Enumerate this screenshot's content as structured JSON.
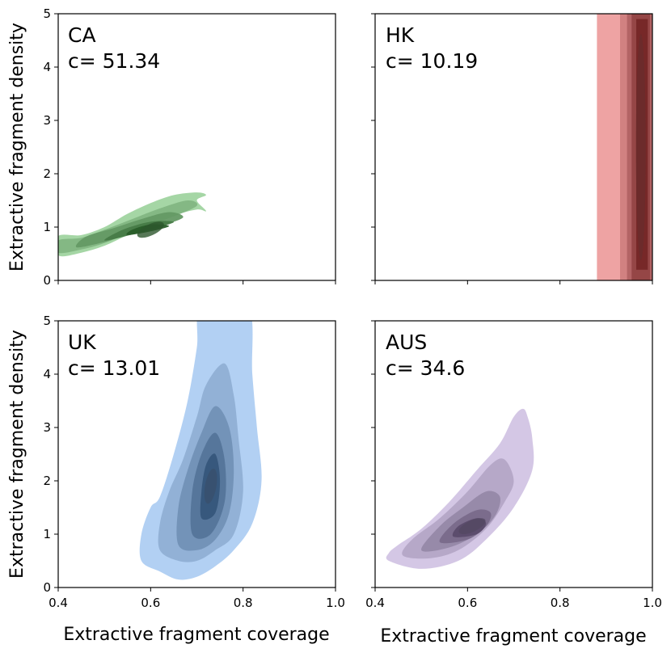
{
  "chart_data": {
    "type": "kde-contour-grid",
    "xlabel": "Extractive fragment coverage",
    "ylabel": "Extractive fragment density",
    "xlim": [
      0.4,
      1.0
    ],
    "ylim": [
      0,
      5
    ],
    "x_ticks": [
      "0.4",
      "0.6",
      "0.8",
      "1.0"
    ],
    "y_ticks": [
      "0",
      "1",
      "2",
      "3",
      "4",
      "5"
    ],
    "grid": false,
    "panels": [
      {
        "name": "CA",
        "c_label": "c= 51.34",
        "color": "#2ca02c",
        "peak": {
          "x": 0.6,
          "y": 0.95
        },
        "levels": [
          [
            [
              0.4,
              0.47
            ],
            [
              0.45,
              0.52
            ],
            [
              0.5,
              0.65
            ],
            [
              0.55,
              0.85
            ],
            [
              0.6,
              1.05
            ],
            [
              0.65,
              1.22
            ],
            [
              0.7,
              1.33
            ],
            [
              0.72,
              1.3
            ],
            [
              0.7,
              1.5
            ],
            [
              0.72,
              1.6
            ],
            [
              0.7,
              1.65
            ],
            [
              0.65,
              1.6
            ],
            [
              0.6,
              1.45
            ],
            [
              0.55,
              1.25
            ],
            [
              0.5,
              1.0
            ],
            [
              0.45,
              0.85
            ],
            [
              0.4,
              0.83
            ]
          ],
          [
            [
              0.4,
              0.52
            ],
            [
              0.45,
              0.58
            ],
            [
              0.5,
              0.7
            ],
            [
              0.55,
              0.88
            ],
            [
              0.6,
              1.05
            ],
            [
              0.65,
              1.2
            ],
            [
              0.7,
              1.4
            ],
            [
              0.68,
              1.5
            ],
            [
              0.62,
              1.35
            ],
            [
              0.56,
              1.15
            ],
            [
              0.5,
              0.95
            ],
            [
              0.45,
              0.8
            ],
            [
              0.4,
              0.75
            ]
          ],
          [
            [
              0.44,
              0.62
            ],
            [
              0.5,
              0.72
            ],
            [
              0.56,
              0.88
            ],
            [
              0.62,
              1.02
            ],
            [
              0.67,
              1.18
            ],
            [
              0.64,
              1.28
            ],
            [
              0.58,
              1.15
            ],
            [
              0.52,
              0.98
            ],
            [
              0.46,
              0.82
            ]
          ],
          [
            [
              0.5,
              0.75
            ],
            [
              0.56,
              0.86
            ],
            [
              0.62,
              1.0
            ],
            [
              0.65,
              1.1
            ],
            [
              0.6,
              1.1
            ],
            [
              0.54,
              0.95
            ]
          ],
          [
            [
              0.55,
              0.85
            ],
            [
              0.6,
              0.92
            ],
            [
              0.64,
              1.02
            ],
            [
              0.6,
              1.05
            ],
            [
              0.56,
              0.95
            ]
          ]
        ]
      },
      {
        "name": "HK",
        "c_label": "c= 10.19",
        "color": "#d62728",
        "peak": {
          "x": 0.975,
          "y": 2.5
        },
        "levels": [
          [
            [
              0.88,
              -0.3
            ],
            [
              1.02,
              -0.3
            ],
            [
              1.02,
              5.3
            ],
            [
              0.88,
              5.3
            ]
          ],
          [
            [
              0.93,
              -0.3
            ],
            [
              1.02,
              -0.3
            ],
            [
              1.02,
              5.3
            ],
            [
              0.93,
              5.3
            ]
          ],
          [
            [
              0.945,
              -0.3
            ],
            [
              1.0,
              -0.3
            ],
            [
              1.0,
              5.3
            ],
            [
              0.945,
              5.3
            ]
          ],
          [
            [
              0.955,
              -0.3
            ],
            [
              0.995,
              -0.3
            ],
            [
              0.995,
              5.3
            ],
            [
              0.955,
              5.3
            ]
          ],
          [
            [
              0.965,
              0.2
            ],
            [
              0.99,
              0.2
            ],
            [
              0.99,
              4.9
            ],
            [
              0.965,
              4.9
            ]
          ]
        ]
      },
      {
        "name": "UK",
        "c_label": "c= 13.01",
        "color": "#4a90e2",
        "peak": {
          "x": 0.73,
          "y": 1.9
        },
        "levels": [
          [
            [
              0.58,
              0.5
            ],
            [
              0.62,
              0.3
            ],
            [
              0.66,
              0.15
            ],
            [
              0.7,
              0.2
            ],
            [
              0.74,
              0.4
            ],
            [
              0.78,
              0.7
            ],
            [
              0.82,
              1.2
            ],
            [
              0.84,
              2.0
            ],
            [
              0.83,
              3.0
            ],
            [
              0.82,
              4.0
            ],
            [
              0.81,
              5.3
            ],
            [
              0.71,
              5.3
            ],
            [
              0.7,
              4.5
            ],
            [
              0.68,
              3.5
            ],
            [
              0.65,
              2.5
            ],
            [
              0.62,
              1.7
            ],
            [
              0.6,
              1.5
            ],
            [
              0.58,
              1.0
            ]
          ],
          [
            [
              0.62,
              0.7
            ],
            [
              0.66,
              0.5
            ],
            [
              0.7,
              0.5
            ],
            [
              0.74,
              0.7
            ],
            [
              0.78,
              1.0
            ],
            [
              0.8,
              1.8
            ],
            [
              0.79,
              2.8
            ],
            [
              0.78,
              3.6
            ],
            [
              0.76,
              4.2
            ],
            [
              0.72,
              3.8
            ],
            [
              0.7,
              3.2
            ],
            [
              0.67,
              2.4
            ],
            [
              0.64,
              1.8
            ],
            [
              0.62,
              1.2
            ]
          ],
          [
            [
              0.66,
              0.8
            ],
            [
              0.7,
              0.7
            ],
            [
              0.74,
              0.9
            ],
            [
              0.77,
              1.4
            ],
            [
              0.78,
              2.2
            ],
            [
              0.77,
              3.0
            ],
            [
              0.74,
              3.4
            ],
            [
              0.71,
              2.9
            ],
            [
              0.68,
              2.2
            ],
            [
              0.66,
              1.5
            ]
          ],
          [
            [
              0.69,
              1.0
            ],
            [
              0.73,
              1.0
            ],
            [
              0.76,
              1.6
            ],
            [
              0.76,
              2.4
            ],
            [
              0.74,
              2.9
            ],
            [
              0.71,
              2.5
            ],
            [
              0.69,
              1.8
            ]
          ],
          [
            [
              0.71,
              1.3
            ],
            [
              0.74,
              1.4
            ],
            [
              0.75,
              2.0
            ],
            [
              0.74,
              2.5
            ],
            [
              0.72,
              2.3
            ],
            [
              0.71,
              1.8
            ]
          ]
        ]
      },
      {
        "name": "AUS",
        "c_label": "c= 34.6",
        "color": "#9b7bc2",
        "peak": {
          "x": 0.61,
          "y": 1.15
        },
        "levels": [
          [
            [
              0.43,
              0.5
            ],
            [
              0.5,
              0.35
            ],
            [
              0.58,
              0.5
            ],
            [
              0.64,
              0.9
            ],
            [
              0.7,
              1.5
            ],
            [
              0.74,
              2.2
            ],
            [
              0.74,
              2.8
            ],
            [
              0.73,
              3.2
            ],
            [
              0.72,
              3.35
            ],
            [
              0.7,
              3.2
            ],
            [
              0.67,
              2.7
            ],
            [
              0.62,
              2.2
            ],
            [
              0.56,
              1.6
            ],
            [
              0.5,
              1.1
            ],
            [
              0.45,
              0.8
            ],
            [
              0.43,
              0.65
            ]
          ],
          [
            [
              0.46,
              0.6
            ],
            [
              0.52,
              0.55
            ],
            [
              0.58,
              0.7
            ],
            [
              0.64,
              1.1
            ],
            [
              0.68,
              1.6
            ],
            [
              0.7,
              2.0
            ],
            [
              0.68,
              2.4
            ],
            [
              0.65,
              2.3
            ],
            [
              0.6,
              1.8
            ],
            [
              0.54,
              1.3
            ],
            [
              0.48,
              0.9
            ]
          ],
          [
            [
              0.5,
              0.7
            ],
            [
              0.56,
              0.75
            ],
            [
              0.62,
              1.0
            ],
            [
              0.66,
              1.35
            ],
            [
              0.67,
              1.7
            ],
            [
              0.64,
              1.8
            ],
            [
              0.59,
              1.5
            ],
            [
              0.54,
              1.15
            ]
          ],
          [
            [
              0.54,
              0.85
            ],
            [
              0.6,
              0.9
            ],
            [
              0.64,
              1.15
            ],
            [
              0.65,
              1.4
            ],
            [
              0.62,
              1.45
            ],
            [
              0.57,
              1.2
            ]
          ],
          [
            [
              0.57,
              0.95
            ],
            [
              0.62,
              1.0
            ],
            [
              0.64,
              1.2
            ],
            [
              0.62,
              1.3
            ],
            [
              0.58,
              1.15
            ]
          ]
        ]
      }
    ]
  }
}
